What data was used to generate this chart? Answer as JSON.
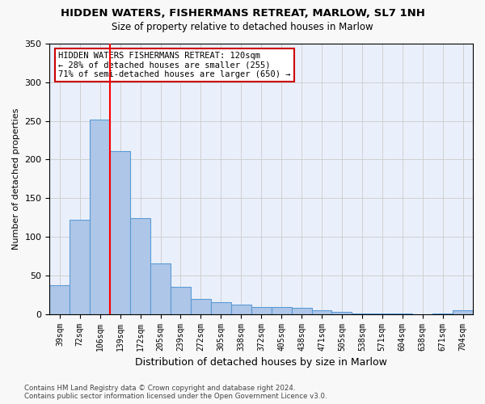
{
  "title": "HIDDEN WATERS, FISHERMANS RETREAT, MARLOW, SL7 1NH",
  "subtitle": "Size of property relative to detached houses in Marlow",
  "xlabel": "Distribution of detached houses by size in Marlow",
  "ylabel": "Number of detached properties",
  "footer_line1": "Contains HM Land Registry data © Crown copyright and database right 2024.",
  "footer_line2": "Contains public sector information licensed under the Open Government Licence v3.0.",
  "bin_labels": [
    "39sqm",
    "72sqm",
    "106sqm",
    "139sqm",
    "172sqm",
    "205sqm",
    "239sqm",
    "272sqm",
    "305sqm",
    "338sqm",
    "372sqm",
    "405sqm",
    "438sqm",
    "471sqm",
    "505sqm",
    "538sqm",
    "571sqm",
    "604sqm",
    "638sqm",
    "671sqm",
    "704sqm"
  ],
  "bar_values": [
    37,
    122,
    252,
    211,
    124,
    66,
    35,
    20,
    15,
    12,
    9,
    9,
    8,
    5,
    3,
    1,
    1,
    1,
    0,
    1,
    5
  ],
  "bar_color": "#aec6e8",
  "bar_edge_color": "#5b9bd5",
  "grid_color": "#d0d0d0",
  "bg_color": "#eaf0fb",
  "fig_color": "#f8f8f8",
  "red_line_x": 2.5,
  "annotation_text": "HIDDEN WATERS FISHERMANS RETREAT: 120sqm\n← 28% of detached houses are smaller (255)\n71% of semi-detached houses are larger (650) →",
  "annotation_box_color": "#ffffff",
  "annotation_border_color": "#cc0000",
  "ylim": [
    0,
    350
  ],
  "yticks": [
    0,
    50,
    100,
    150,
    200,
    250,
    300,
    350
  ]
}
